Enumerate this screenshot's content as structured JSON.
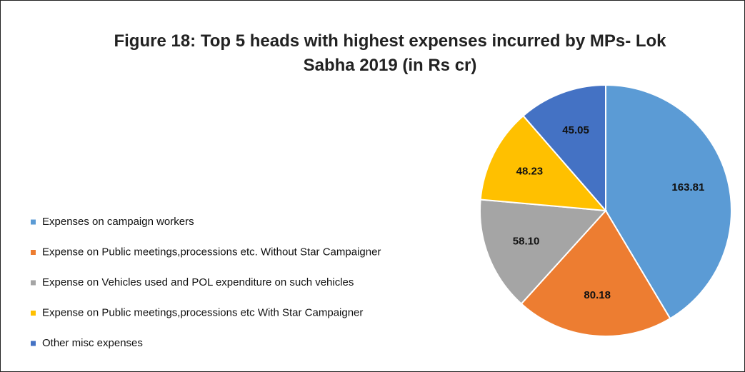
{
  "chart_data": {
    "type": "pie",
    "title": "Figure 18: Top 5 heads with highest expenses incurred by MPs- Lok Sabha 2019 (in Rs cr)",
    "categories": [
      "Expenses on campaign workers",
      "Expense on Public meetings,processions etc. Without Star Campaigner",
      "Expense on Vehicles used and POL expenditure on such vehicles",
      "Expense on Public meetings,processions etc With Star Campaigner",
      "Other misc expenses"
    ],
    "values": [
      163.81,
      80.18,
      58.1,
      48.23,
      45.05
    ],
    "value_labels": [
      "163.81",
      "80.18",
      "58.10",
      "48.23",
      "45.05"
    ],
    "colors": [
      "#5b9bd5",
      "#ed7d31",
      "#a5a5a5",
      "#ffc000",
      "#4472c4"
    ],
    "legend": "left"
  }
}
